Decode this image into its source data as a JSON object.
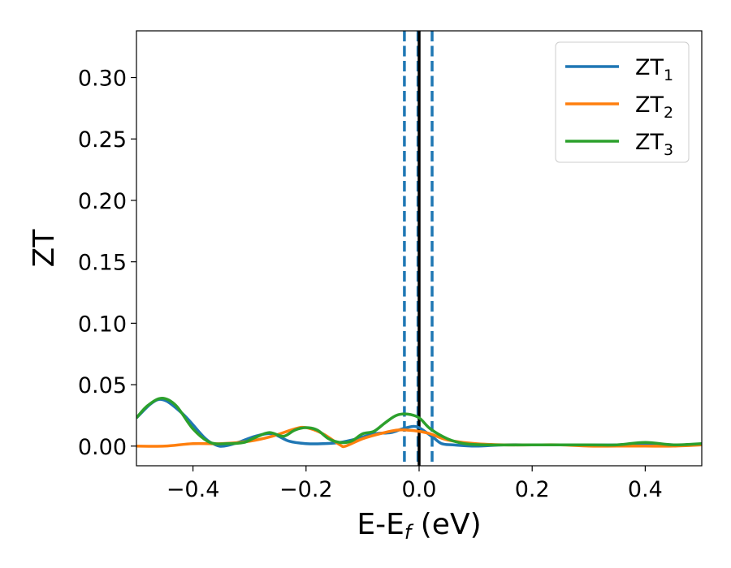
{
  "chart_data": {
    "type": "line",
    "title": "",
    "xlabel": "E-E",
    "xlabel_sub": "f",
    "xlabel_suffix": " (eV)",
    "ylabel": "ZT",
    "xlim": [
      -0.5,
      0.5
    ],
    "ylim": [
      -0.016,
      0.338
    ],
    "xticks": [
      -0.4,
      -0.2,
      0.0,
      0.2,
      0.4
    ],
    "xtick_labels": [
      "−0.4",
      "−0.2",
      "0.0",
      "0.2",
      "0.4"
    ],
    "yticks": [
      0.0,
      0.05,
      0.1,
      0.15,
      0.2,
      0.25,
      0.3
    ],
    "ytick_labels": [
      "0.00",
      "0.05",
      "0.10",
      "0.15",
      "0.20",
      "0.25",
      "0.30"
    ],
    "grid": false,
    "legend_position": "top-right",
    "vlines": [
      {
        "x": -0.026,
        "style": "dashed",
        "color": "#1f77b4"
      },
      {
        "x": -0.002,
        "style": "dashed",
        "color": "#1f77b4"
      },
      {
        "x": 0.0,
        "style": "solid",
        "color": "#000000"
      },
      {
        "x": 0.023,
        "style": "dashed",
        "color": "#1f77b4"
      }
    ],
    "series": [
      {
        "name": "ZT",
        "name_sub": "1",
        "color": "#1f77b4",
        "x": [
          -0.5,
          -0.46,
          -0.42,
          -0.38,
          -0.36,
          -0.345,
          -0.32,
          -0.29,
          -0.26,
          -0.23,
          -0.2,
          -0.17,
          -0.14,
          -0.11,
          -0.08,
          -0.05,
          -0.03,
          -0.01,
          0.0,
          0.01,
          0.025,
          0.04,
          0.06,
          0.1,
          0.15,
          0.2,
          0.25,
          0.3,
          0.35,
          0.4,
          0.45,
          0.5
        ],
        "y": [
          0.023,
          0.038,
          0.027,
          0.007,
          0.001,
          0.0,
          0.003,
          0.008,
          0.01,
          0.004,
          0.002,
          0.002,
          0.003,
          0.006,
          0.01,
          0.011,
          0.014,
          0.016,
          0.015,
          0.012,
          0.007,
          0.002,
          0.001,
          0.0,
          0.001,
          0.001,
          0.001,
          0.001,
          0.001,
          0.002,
          0.001,
          0.001
        ]
      },
      {
        "name": "ZT",
        "name_sub": "2",
        "color": "#ff7f0e",
        "x": [
          -0.5,
          -0.45,
          -0.4,
          -0.35,
          -0.3,
          -0.26,
          -0.22,
          -0.2,
          -0.17,
          -0.14,
          -0.13,
          -0.1,
          -0.07,
          -0.04,
          -0.02,
          0.0,
          0.02,
          0.05,
          0.1,
          0.15,
          0.2,
          0.25,
          0.3,
          0.35,
          0.4,
          0.45,
          0.5
        ],
        "y": [
          0.0,
          0.0,
          0.002,
          0.002,
          0.004,
          0.008,
          0.014,
          0.015,
          0.01,
          0.001,
          0.0,
          0.006,
          0.01,
          0.013,
          0.013,
          0.012,
          0.01,
          0.005,
          0.002,
          0.001,
          0.001,
          0.001,
          0.0,
          0.0,
          0.0,
          0.0,
          0.001
        ]
      },
      {
        "name": "ZT",
        "name_sub": "3",
        "color": "#2ca02c",
        "x": [
          -0.5,
          -0.48,
          -0.455,
          -0.43,
          -0.4,
          -0.37,
          -0.34,
          -0.31,
          -0.29,
          -0.265,
          -0.24,
          -0.22,
          -0.2,
          -0.18,
          -0.16,
          -0.14,
          -0.12,
          -0.1,
          -0.08,
          -0.06,
          -0.04,
          -0.02,
          0.0,
          0.02,
          0.05,
          0.08,
          0.12,
          0.2,
          0.3,
          0.35,
          0.4,
          0.45,
          0.5
        ],
        "y": [
          0.023,
          0.033,
          0.039,
          0.033,
          0.014,
          0.003,
          0.002,
          0.003,
          0.007,
          0.011,
          0.008,
          0.013,
          0.015,
          0.013,
          0.006,
          0.003,
          0.004,
          0.01,
          0.012,
          0.019,
          0.025,
          0.026,
          0.023,
          0.014,
          0.006,
          0.002,
          0.001,
          0.001,
          0.001,
          0.001,
          0.003,
          0.001,
          0.002
        ]
      }
    ]
  }
}
